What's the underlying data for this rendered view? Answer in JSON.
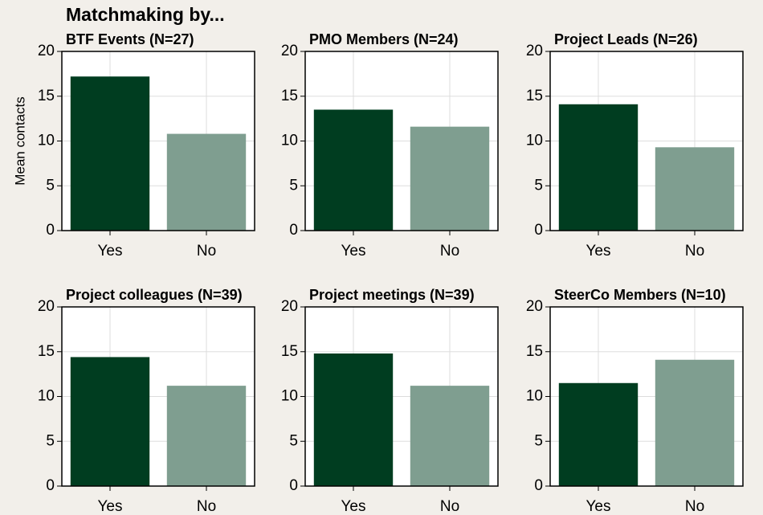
{
  "title": "Matchmaking by...",
  "chart_data": [
    {
      "type": "bar",
      "title": "BTF Events (N=27)",
      "ylabel": "Mean contacts",
      "categories": [
        "Yes",
        "No"
      ],
      "values": [
        17.2,
        10.8
      ],
      "colors": [
        "#003d20",
        "#7f9e90"
      ],
      "ylim": [
        0,
        20
      ],
      "yticks": [
        0,
        5,
        10,
        15,
        20
      ],
      "grid": true
    },
    {
      "type": "bar",
      "title": "PMO Members (N=24)",
      "categories": [
        "Yes",
        "No"
      ],
      "values": [
        13.5,
        11.6
      ],
      "colors": [
        "#003d20",
        "#7f9e90"
      ],
      "ylim": [
        0,
        20
      ],
      "yticks": [
        0,
        5,
        10,
        15,
        20
      ],
      "grid": true
    },
    {
      "type": "bar",
      "title": "Project Leads (N=26)",
      "categories": [
        "Yes",
        "No"
      ],
      "values": [
        14.1,
        9.3
      ],
      "colors": [
        "#003d20",
        "#7f9e90"
      ],
      "ylim": [
        0,
        20
      ],
      "yticks": [
        0,
        5,
        10,
        15,
        20
      ],
      "grid": true
    },
    {
      "type": "bar",
      "title": "Project colleagues (N=39)",
      "categories": [
        "Yes",
        "No"
      ],
      "values": [
        14.4,
        11.2
      ],
      "colors": [
        "#003d20",
        "#7f9e90"
      ],
      "ylim": [
        0,
        20
      ],
      "yticks": [
        0,
        5,
        10,
        15,
        20
      ],
      "grid": true
    },
    {
      "type": "bar",
      "title": "Project meetings (N=39)",
      "categories": [
        "Yes",
        "No"
      ],
      "values": [
        14.8,
        11.2
      ],
      "colors": [
        "#003d20",
        "#7f9e90"
      ],
      "ylim": [
        0,
        20
      ],
      "yticks": [
        0,
        5,
        10,
        15,
        20
      ],
      "grid": true
    },
    {
      "type": "bar",
      "title": "SteerCo Members (N=10)",
      "categories": [
        "Yes",
        "No"
      ],
      "values": [
        11.5,
        14.1
      ],
      "colors": [
        "#003d20",
        "#7f9e90"
      ],
      "ylim": [
        0,
        20
      ],
      "yticks": [
        0,
        5,
        10,
        15,
        20
      ],
      "grid": true
    }
  ]
}
